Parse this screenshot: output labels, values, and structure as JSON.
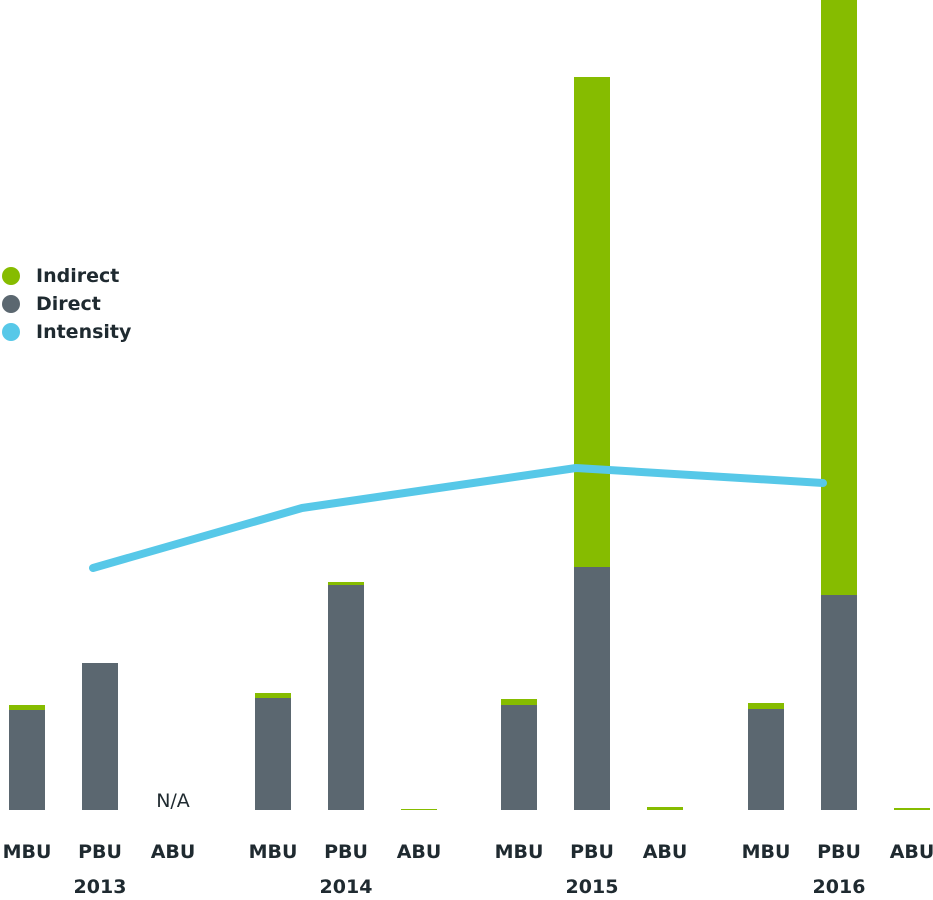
{
  "legend": {
    "items": [
      {
        "label": "Indirect",
        "color": "#86bc00"
      },
      {
        "label": "Direct",
        "color": "#5b6770"
      },
      {
        "label": "Intensity",
        "color": "#57c8e8"
      }
    ]
  },
  "chart_data": {
    "type": "bar",
    "stacked": true,
    "title": "",
    "xlabel": "",
    "ylabel": "",
    "ylim": [
      0,
      810
    ],
    "years": [
      "2013",
      "2014",
      "2015",
      "2016"
    ],
    "units": [
      "MBU",
      "PBU",
      "ABU"
    ],
    "series": [
      {
        "name": "Direct",
        "color": "#5b6770",
        "values": [
          [
            100,
            147,
            null
          ],
          [
            112,
            225,
            0
          ],
          [
            105,
            243,
            0
          ],
          [
            101,
            215,
            0
          ]
        ]
      },
      {
        "name": "Indirect",
        "color": "#86bc00",
        "values": [
          [
            5,
            0,
            null
          ],
          [
            5,
            3,
            1
          ],
          [
            6,
            490,
            3
          ],
          [
            6,
            595,
            2
          ]
        ]
      }
    ],
    "na_label": "N/A",
    "intensity": {
      "name": "Intensity",
      "color": "#57c8e8",
      "values": [
        242,
        302,
        342,
        327
      ]
    },
    "grid": false
  }
}
